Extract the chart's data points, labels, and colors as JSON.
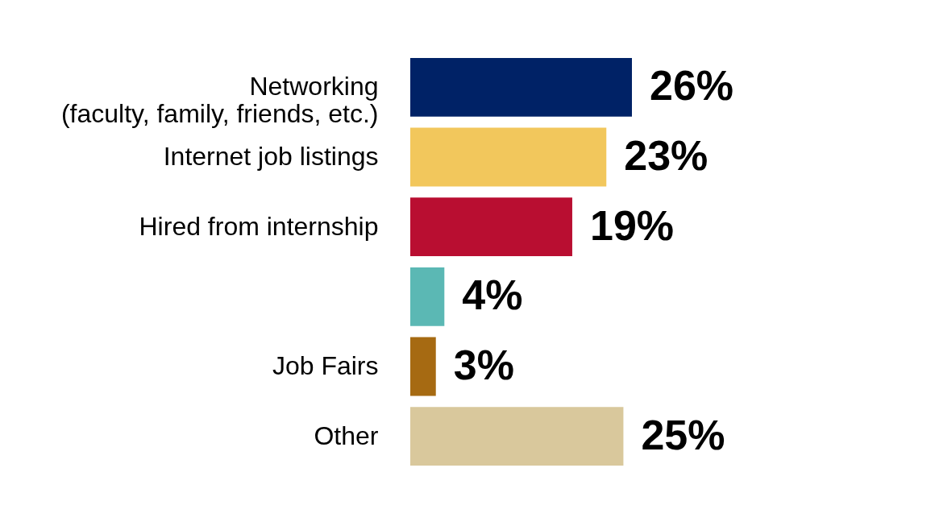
{
  "chart_data": {
    "type": "bar",
    "orientation": "horizontal",
    "categories": [
      "Networking\n(faculty, family, friends, etc.)",
      "Internet job listings",
      "Hired from internship",
      null,
      "Job Fairs",
      "Other"
    ],
    "values": [
      26,
      23,
      19,
      4,
      3,
      25
    ],
    "colors": [
      "#002266",
      "#f2c75c",
      "#b90e31",
      "#5bb8b4",
      "#a66a12",
      "#d9c89c"
    ],
    "value_labels": [
      "26%",
      "23%",
      "19%",
      "4%",
      "3%",
      "25%"
    ]
  }
}
